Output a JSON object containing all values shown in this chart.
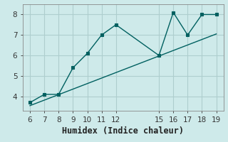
{
  "xlabel": "Humidex (Indice chaleur)",
  "bg_color": "#ceeaea",
  "grid_color": "#aecece",
  "line_color": "#006060",
  "x_data": [
    6,
    7,
    8,
    9,
    10,
    11,
    12,
    15,
    16,
    17,
    18,
    19
  ],
  "y_data": [
    3.7,
    4.1,
    4.1,
    5.4,
    6.1,
    7.0,
    7.5,
    6.0,
    8.1,
    7.0,
    8.0,
    8.0
  ],
  "trend_x": [
    6,
    19
  ],
  "trend_y": [
    3.55,
    7.05
  ],
  "xlim": [
    5.5,
    19.5
  ],
  "ylim": [
    3.3,
    8.5
  ],
  "xticks": [
    6,
    7,
    8,
    9,
    10,
    11,
    12,
    15,
    16,
    17,
    18,
    19
  ],
  "yticks": [
    4,
    5,
    6,
    7,
    8
  ],
  "tick_fontsize": 7.5,
  "xlabel_fontsize": 8.5
}
